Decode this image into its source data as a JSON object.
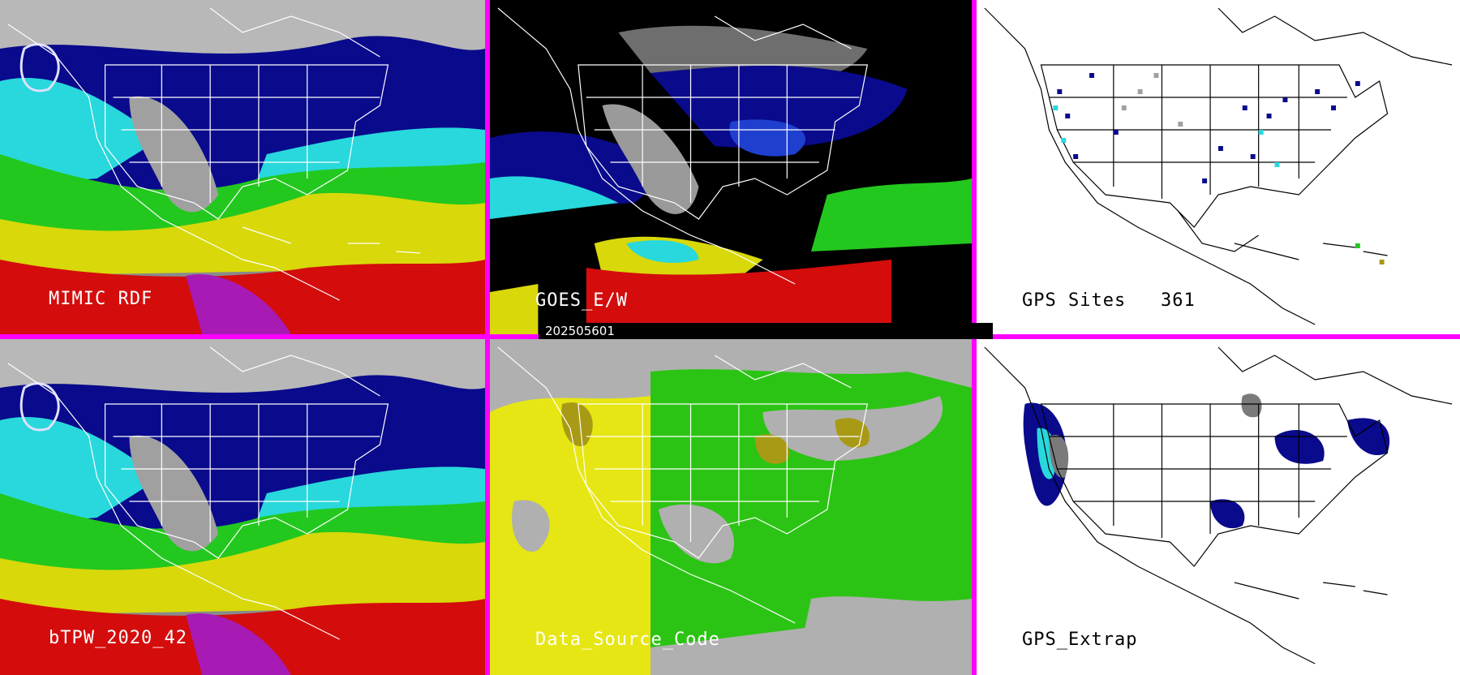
{
  "date": "202505601",
  "panels": {
    "mimic": {
      "label": "MIMIC RDF"
    },
    "goes": {
      "label": "GOES_E/W"
    },
    "gps": {
      "label": "GPS Sites",
      "count": "361"
    },
    "btpw": {
      "label": "bTPW_2020_42"
    },
    "source": {
      "label": "Data_Source_Code"
    },
    "extrap": {
      "label": "GPS_Extrap"
    }
  },
  "colors": {
    "divider": "#ff00ff",
    "dry_gray": "#7a7a7a",
    "navy": "#0a0a8c",
    "blue": "#1f3fcf",
    "cyan": "#28d8dc",
    "green": "#22c81e",
    "yellow": "#d8d80a",
    "red": "#d40c0c",
    "magenta": "#a81ab4",
    "source_gray": "#b0b0b0",
    "source_yellow": "#e6e614",
    "source_green": "#2cc414",
    "source_olive": "#a89a14"
  }
}
